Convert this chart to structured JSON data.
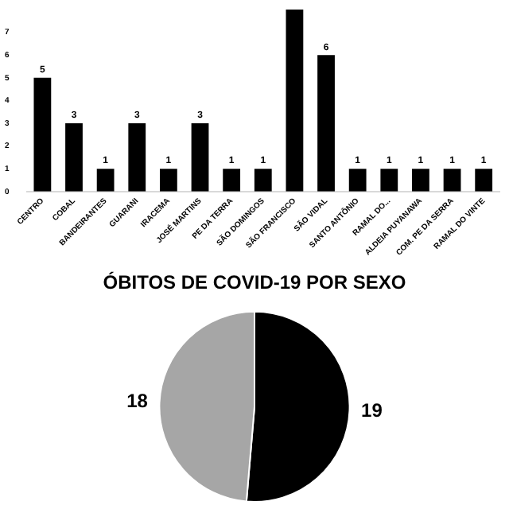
{
  "chart_data": [
    {
      "type": "bar",
      "categories": [
        "CENTRO",
        "COBAL",
        "BANDEIRANTES",
        "GUARANI",
        "IRACEMA",
        "JOSÉ MARTINS",
        "PE DA TERRA",
        "SÃO DOMINGOS",
        "SÃO FRANCISCO",
        "SÃO VIDAL",
        "SANTO ANTÔNIO",
        "RAMAL DO...",
        "ALDEIA PUYANAWA",
        "COM. PE DA SERRA",
        "RAMAL DO VINTE"
      ],
      "values": [
        5,
        3,
        1,
        3,
        1,
        3,
        1,
        1,
        8,
        6,
        1,
        1,
        1,
        1,
        1
      ],
      "value_labels": [
        "5",
        "3",
        "1",
        "3",
        "1",
        "3",
        "1",
        "1",
        null,
        "6",
        "1",
        "1",
        "1",
        "1",
        "1"
      ],
      "color": "#000000",
      "ylim": [
        0,
        8
      ],
      "yticks": [
        0,
        1,
        2,
        3,
        4,
        5,
        6,
        7
      ],
      "grid": false,
      "legend": false
    },
    {
      "type": "pie",
      "title": "ÓBITOS DE COVID-19 POR SEXO",
      "categories": [
        null,
        null
      ],
      "values": [
        19,
        18
      ],
      "colors": [
        "#000000",
        "#a6a6a6"
      ],
      "data_labels": true,
      "legend": false
    }
  ]
}
